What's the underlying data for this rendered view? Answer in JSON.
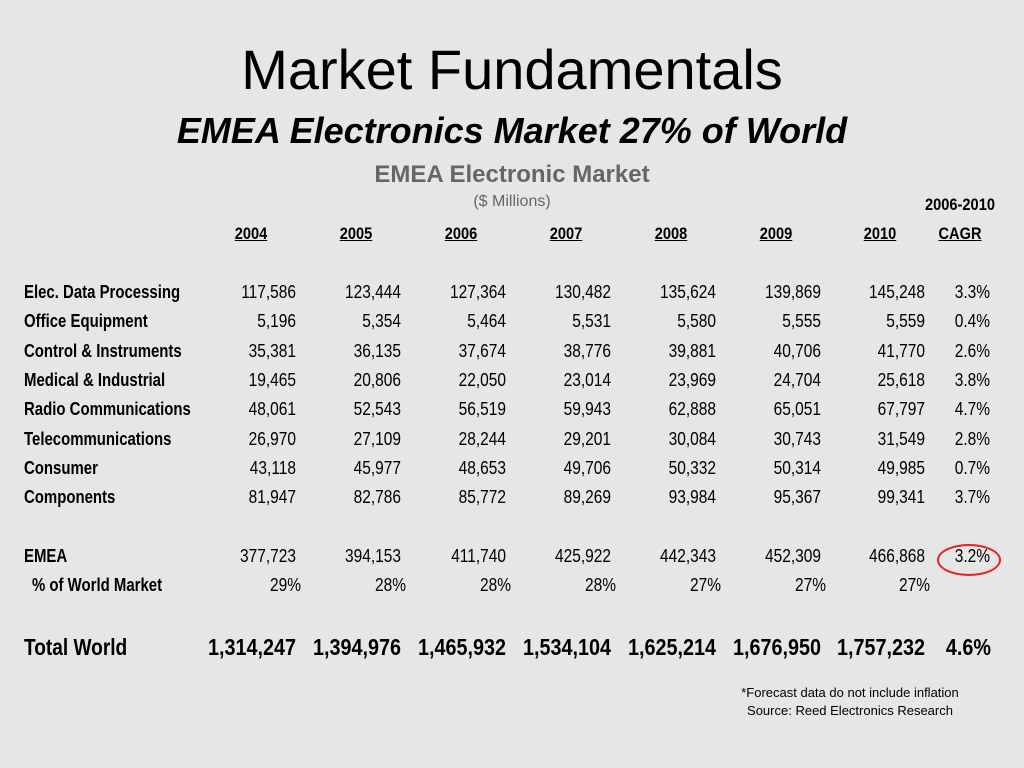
{
  "slide": {
    "title": "Market Fundamentals",
    "subtitle": "EMEA Electronics Market 27% of World",
    "table_title": "EMEA Electronic Market",
    "table_units": "($ Millions)",
    "cagr_header_top": "2006-2010",
    "cagr_header": "CAGR",
    "years": [
      "2004",
      "2005",
      "2006",
      "2007",
      "2008",
      "2009",
      "2010"
    ],
    "rows": [
      {
        "label": "Elec. Data Processing",
        "values": [
          "117,586",
          "123,444",
          "127,364",
          "130,482",
          "135,624",
          "139,869",
          "145,248"
        ],
        "cagr": "3.3%"
      },
      {
        "label": "Office Equipment",
        "values": [
          "5,196",
          "5,354",
          "5,464",
          "5,531",
          "5,580",
          "5,555",
          "5,559"
        ],
        "cagr": "0.4%"
      },
      {
        "label": "Control & Instruments",
        "values": [
          "35,381",
          "36,135",
          "37,674",
          "38,776",
          "39,881",
          "40,706",
          "41,770"
        ],
        "cagr": "2.6%"
      },
      {
        "label": "Medical & Industrial",
        "values": [
          "19,465",
          "20,806",
          "22,050",
          "23,014",
          "23,969",
          "24,704",
          "25,618"
        ],
        "cagr": "3.8%"
      },
      {
        "label": "Radio Communications",
        "values": [
          "48,061",
          "52,543",
          "56,519",
          "59,943",
          "62,888",
          "65,051",
          "67,797"
        ],
        "cagr": "4.7%"
      },
      {
        "label": "Telecommunications",
        "values": [
          "26,970",
          "27,109",
          "28,244",
          "29,201",
          "30,084",
          "30,743",
          "31,549"
        ],
        "cagr": "2.8%"
      },
      {
        "label": "Consumer",
        "values": [
          "43,118",
          "45,977",
          "48,653",
          "49,706",
          "50,332",
          "50,314",
          "49,985"
        ],
        "cagr": "0.7%"
      },
      {
        "label": "Components",
        "values": [
          "81,947",
          "82,786",
          "85,772",
          "89,269",
          "93,984",
          "95,367",
          "99,341"
        ],
        "cagr": "3.7%"
      }
    ],
    "emea": {
      "label": "EMEA",
      "values": [
        "377,723",
        "394,153",
        "411,740",
        "425,922",
        "442,343",
        "452,309",
        "466,868"
      ],
      "cagr": "3.2%"
    },
    "pct_world": {
      "label": "% of World Market",
      "values": [
        "29%",
        "28%",
        "28%",
        "28%",
        "27%",
        "27%",
        "27%"
      ]
    },
    "total_world": {
      "label": "Total World",
      "values": [
        "1,314,247",
        "1,394,976",
        "1,465,932",
        "1,534,104",
        "1,625,214",
        "1,676,950",
        "1,757,232"
      ],
      "cagr": "4.6%"
    },
    "notes": [
      "*Forecast data do not include inflation",
      "Source:  Reed Electronics Research"
    ],
    "highlight_color": "#e8221f"
  }
}
